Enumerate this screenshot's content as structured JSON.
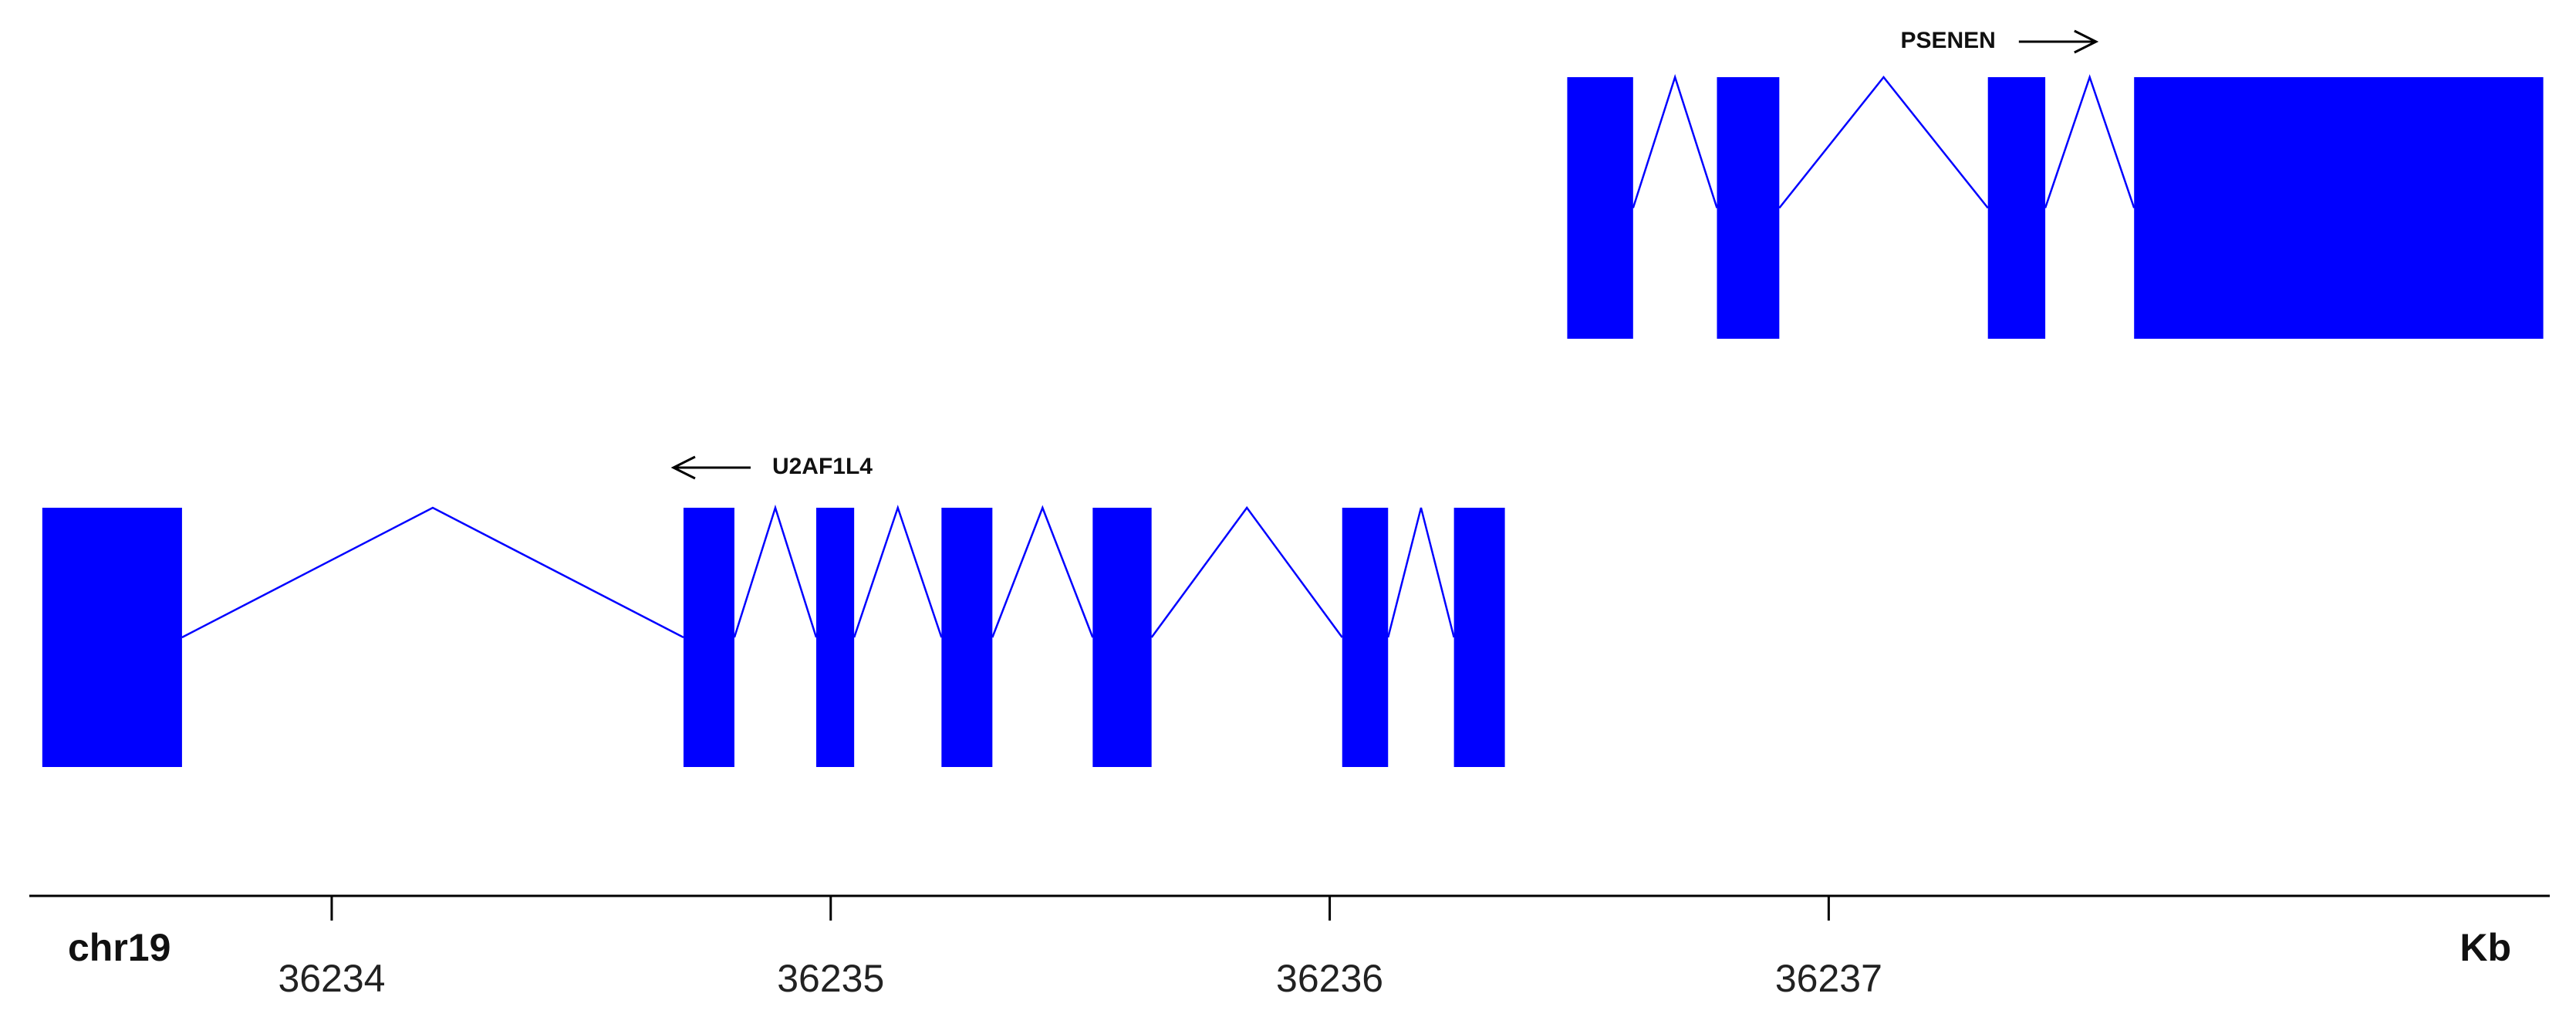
{
  "axis": {
    "chromosome": "chr19",
    "unit": "Kb",
    "xlim": [
      36233.394,
      36238.445
    ],
    "xticks": [
      36234,
      36235,
      36236,
      36237
    ]
  },
  "genes": [
    {
      "name": "PSENEN",
      "direction": "right",
      "color": "#0000ff",
      "exons": [
        [
          36236.476,
          36236.608
        ],
        [
          36236.776,
          36236.901
        ],
        [
          36237.319,
          36237.434
        ],
        [
          36237.612,
          36238.432
        ]
      ]
    },
    {
      "name": "U2AF1L4",
      "direction": "left",
      "color": "#0000ff",
      "exons": [
        [
          36233.42,
          36233.7
        ],
        [
          36234.705,
          36234.807
        ],
        [
          36234.971,
          36235.047
        ],
        [
          36235.222,
          36235.324
        ],
        [
          36235.525,
          36235.643
        ],
        [
          36236.025,
          36236.117
        ],
        [
          36236.249,
          36236.351
        ]
      ]
    }
  ]
}
